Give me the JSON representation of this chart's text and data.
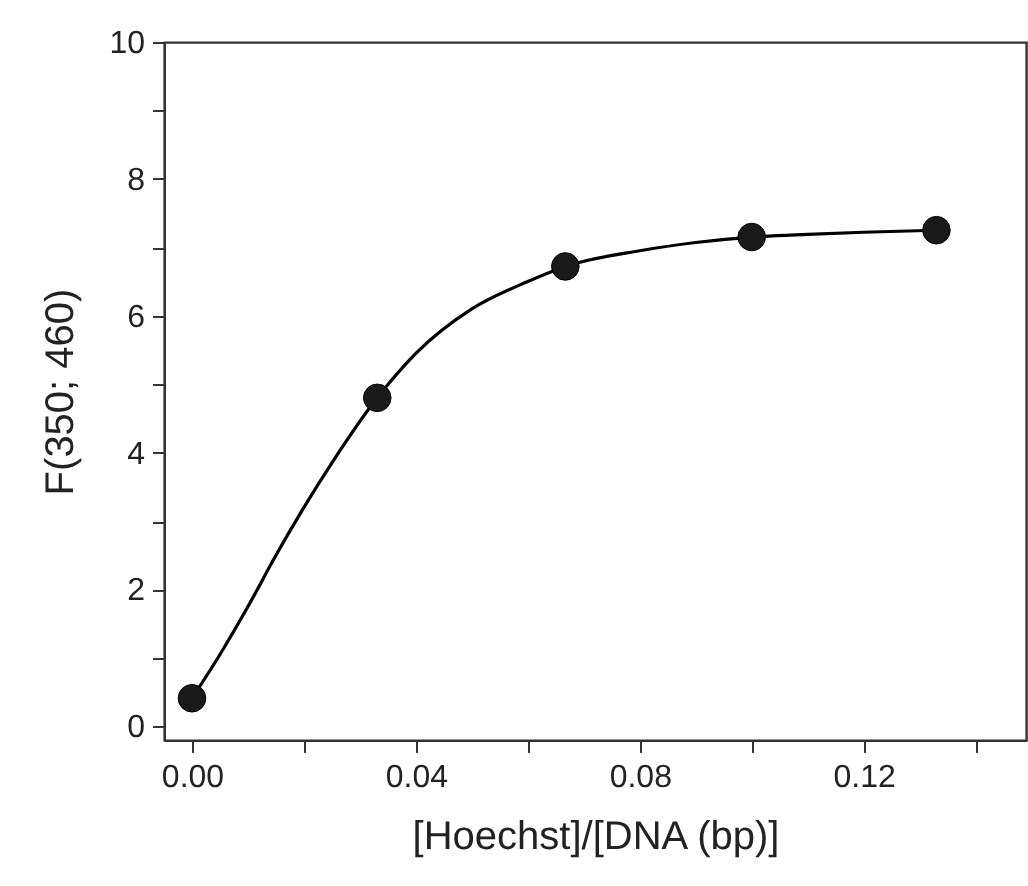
{
  "chart_data": {
    "type": "scatter",
    "xlabel": "[Hoechst]/[DNA (bp)]",
    "ylabel": "F(350; 460)",
    "xlim": [
      -0.005,
      0.149
    ],
    "ylim": [
      -0.2,
      10
    ],
    "xticks": [
      {
        "value": 0,
        "label": "0.00"
      },
      {
        "value": 0.02,
        "label": null
      },
      0.04,
      {
        "value": 0.06,
        "label": null
      },
      0.08,
      {
        "value": 0.1,
        "label": null
      },
      0.12,
      {
        "value": 0.14,
        "label": null
      }
    ],
    "yticks": [
      0,
      {
        "value": 1,
        "label": null
      },
      2,
      {
        "value": 3,
        "label": null
      },
      4,
      {
        "value": 5,
        "label": null
      },
      6,
      {
        "value": 7,
        "label": null
      },
      8,
      {
        "value": 9,
        "label": null
      },
      10
    ],
    "grid": false,
    "series": [
      {
        "type": "line",
        "color": "#000000",
        "line_style": "solid",
        "marker": "none",
        "x": [
          0,
          0.005,
          0.01,
          0.015,
          0.02,
          0.025,
          0.0331,
          0.04,
          0.05,
          0.06,
          0.0667,
          0.08,
          0.09,
          0.1,
          0.11,
          0.12,
          0.133
        ],
        "values": [
          0.41,
          1.05,
          1.75,
          2.5,
          3.2,
          3.85,
          4.8,
          5.45,
          6.1,
          6.5,
          6.72,
          6.95,
          7.07,
          7.15,
          7.19,
          7.22,
          7.25
        ]
      },
      {
        "type": "scatter",
        "color": "#1a1a1a",
        "marker": "circle",
        "x": [
          0,
          0.0331,
          0.0667,
          0.1,
          0.133
        ],
        "values": [
          0.41,
          4.8,
          6.72,
          7.15,
          7.25
        ]
      }
    ]
  }
}
